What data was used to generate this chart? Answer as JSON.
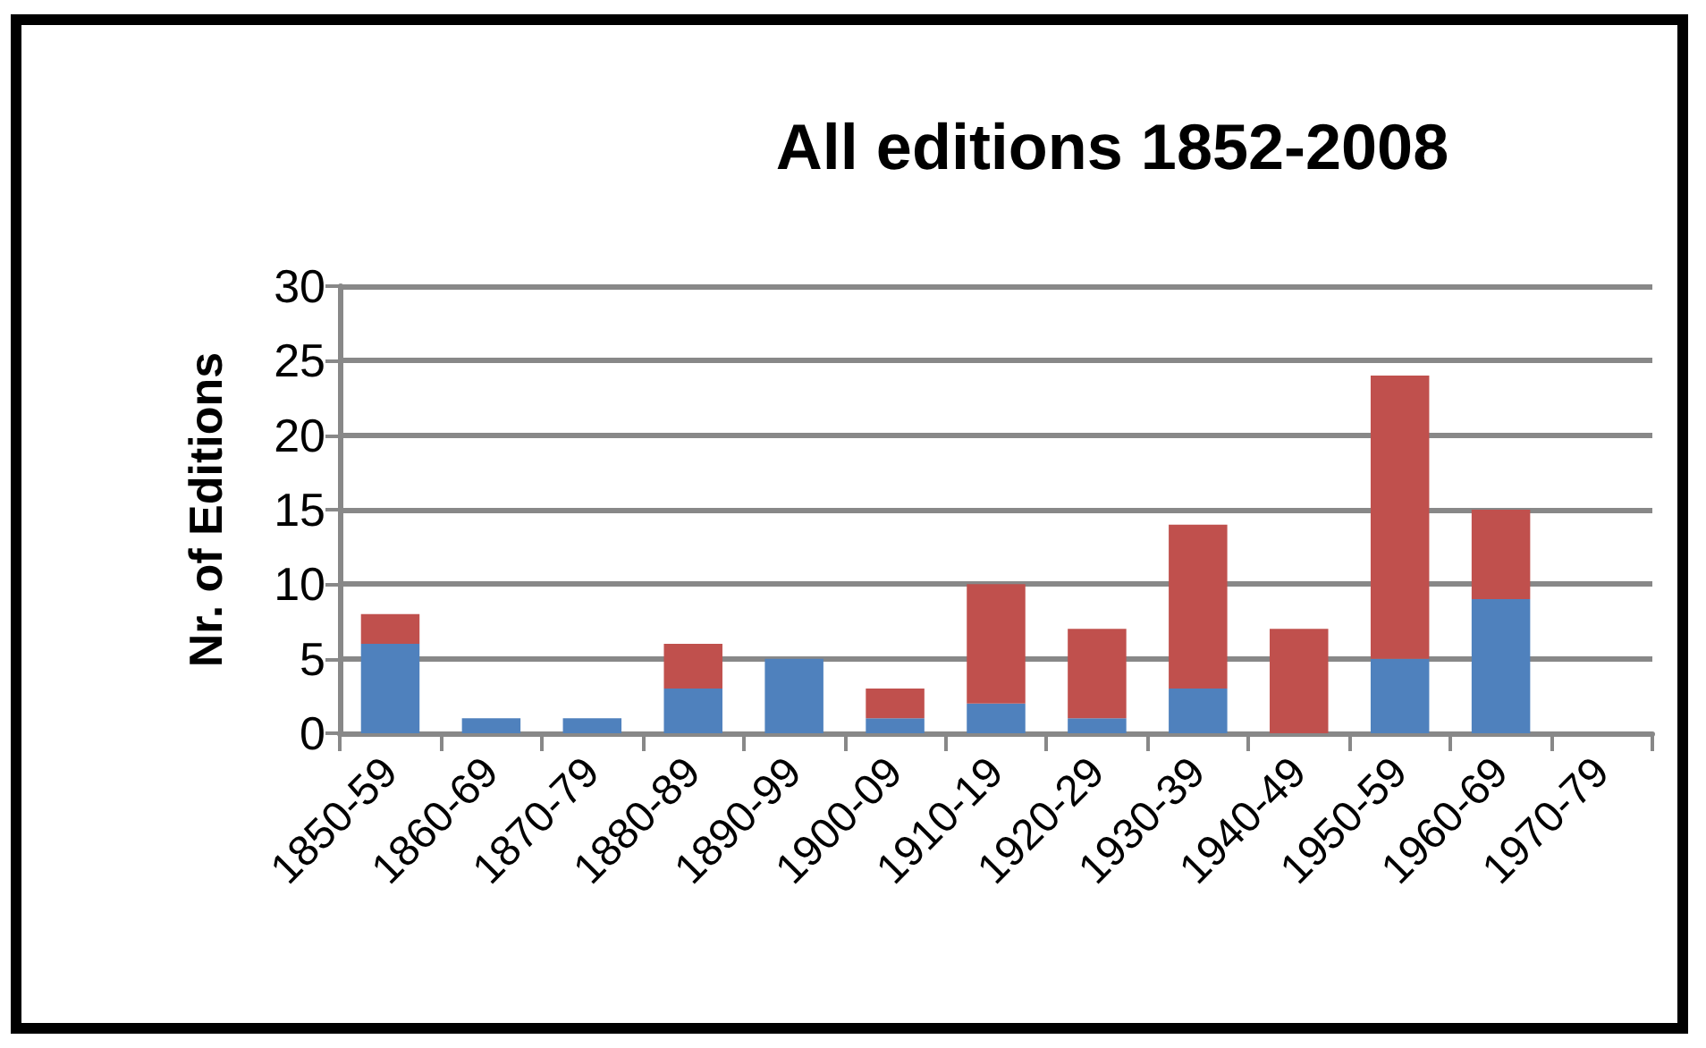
{
  "chart_data": {
    "type": "bar",
    "title": "All editions 1852-2008",
    "ylabel": "Nr. of Editions",
    "categories": [
      "1850-59",
      "1860-69",
      "1870-79",
      "1880-89",
      "1890-99",
      "1900-09",
      "1910-19",
      "1920-29",
      "1930-39",
      "1940-49",
      "1950-59",
      "1960-69",
      "1970-79"
    ],
    "stacked": true,
    "series": [
      {
        "color": "#4f81bd",
        "values": [
          6,
          1,
          1,
          3,
          5,
          1,
          2,
          1,
          3,
          0,
          5,
          9,
          null
        ]
      },
      {
        "color": "#c0504d",
        "values": [
          2,
          0,
          0,
          3,
          0,
          2,
          8,
          6,
          11,
          7,
          19,
          6,
          null
        ]
      }
    ],
    "ylim": [
      0,
      30
    ],
    "yticks": [
      0,
      5,
      10,
      15,
      20,
      25,
      30
    ],
    "grid": "y"
  }
}
